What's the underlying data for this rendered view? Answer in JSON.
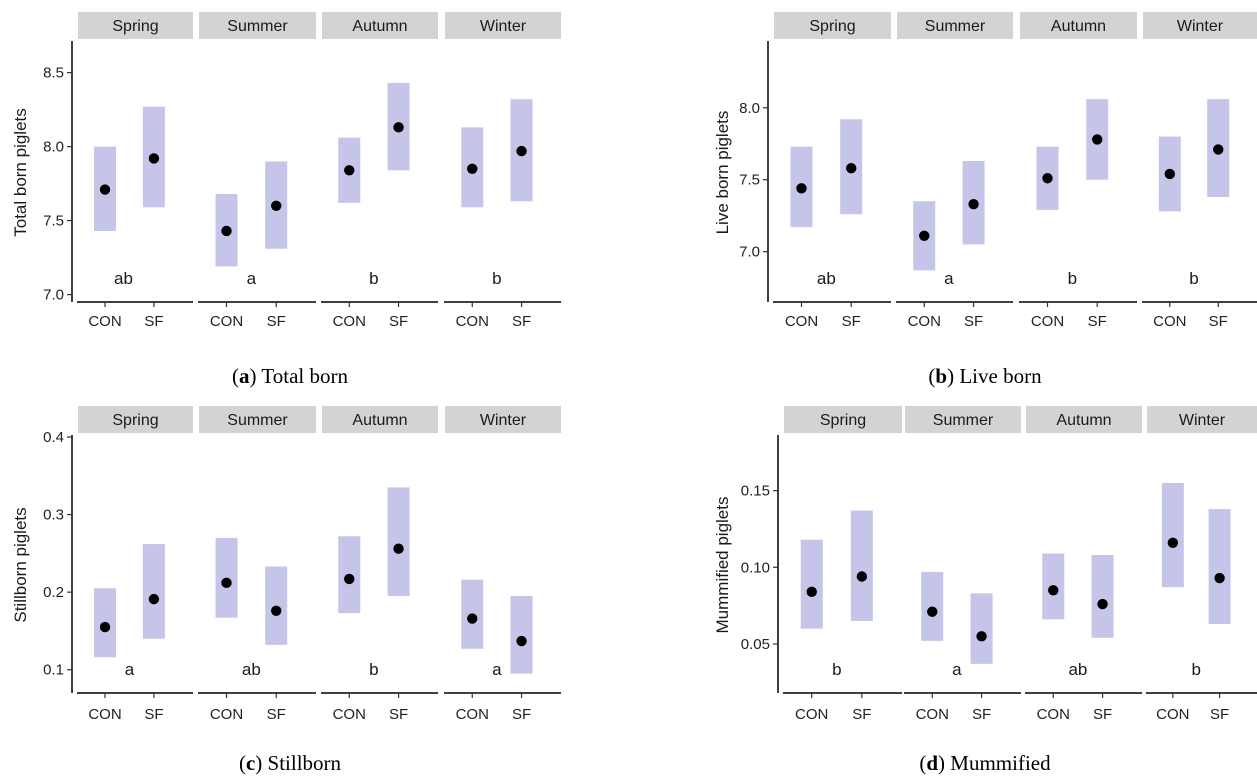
{
  "chart_data": [
    {
      "type": "scatter",
      "panel_label": "a",
      "caption": "Total born",
      "ylabel": "Total born piglets",
      "xlabel": "",
      "ylim": [
        6.95,
        8.7
      ],
      "y_ticks": [
        7.0,
        7.5,
        8.0,
        8.5
      ],
      "facets": [
        "Spring",
        "Summer",
        "Autumn",
        "Winter"
      ],
      "categories": [
        "CON",
        "SF"
      ],
      "series": [
        {
          "facet": "Spring",
          "group_letter": "ab",
          "points": [
            {
              "category": "CON",
              "mean": 7.71,
              "lower": 7.43,
              "upper": 8.0
            },
            {
              "category": "SF",
              "mean": 7.92,
              "lower": 7.59,
              "upper": 8.27
            }
          ]
        },
        {
          "facet": "Summer",
          "group_letter": "a",
          "points": [
            {
              "category": "CON",
              "mean": 7.43,
              "lower": 7.19,
              "upper": 7.68
            },
            {
              "category": "SF",
              "mean": 7.6,
              "lower": 7.31,
              "upper": 7.9
            }
          ]
        },
        {
          "facet": "Autumn",
          "group_letter": "b",
          "points": [
            {
              "category": "CON",
              "mean": 7.84,
              "lower": 7.62,
              "upper": 8.06
            },
            {
              "category": "SF",
              "mean": 8.13,
              "lower": 7.84,
              "upper": 8.43
            }
          ]
        },
        {
          "facet": "Winter",
          "group_letter": "b",
          "points": [
            {
              "category": "CON",
              "mean": 7.85,
              "lower": 7.59,
              "upper": 8.13
            },
            {
              "category": "SF",
              "mean": 7.97,
              "lower": 7.63,
              "upper": 8.32
            }
          ]
        }
      ]
    },
    {
      "type": "scatter",
      "panel_label": "b",
      "caption": "Live born",
      "ylabel": "Live born piglets",
      "xlabel": "",
      "ylim": [
        6.65,
        8.45
      ],
      "y_ticks": [
        7.0,
        7.5,
        8.0
      ],
      "facets": [
        "Spring",
        "Summer",
        "Autumn",
        "Winter"
      ],
      "categories": [
        "CON",
        "SF"
      ],
      "series": [
        {
          "facet": "Spring",
          "group_letter": "ab",
          "points": [
            {
              "category": "CON",
              "mean": 7.44,
              "lower": 7.17,
              "upper": 7.73
            },
            {
              "category": "SF",
              "mean": 7.58,
              "lower": 7.26,
              "upper": 7.92
            }
          ]
        },
        {
          "facet": "Summer",
          "group_letter": "a",
          "points": [
            {
              "category": "CON",
              "mean": 7.11,
              "lower": 6.87,
              "upper": 7.35
            },
            {
              "category": "SF",
              "mean": 7.33,
              "lower": 7.05,
              "upper": 7.63
            }
          ]
        },
        {
          "facet": "Autumn",
          "group_letter": "b",
          "points": [
            {
              "category": "CON",
              "mean": 7.51,
              "lower": 7.29,
              "upper": 7.73
            },
            {
              "category": "SF",
              "mean": 7.78,
              "lower": 7.5,
              "upper": 8.06
            }
          ]
        },
        {
          "facet": "Winter",
          "group_letter": "b",
          "points": [
            {
              "category": "CON",
              "mean": 7.54,
              "lower": 7.28,
              "upper": 7.8
            },
            {
              "category": "SF",
              "mean": 7.71,
              "lower": 7.38,
              "upper": 8.06
            }
          ]
        }
      ]
    },
    {
      "type": "scatter",
      "panel_label": "c",
      "caption": "Stillborn",
      "ylabel": "Stillborn piglets",
      "xlabel": "",
      "ylim": [
        0.07,
        0.4
      ],
      "y_ticks": [
        0.1,
        0.2,
        0.3,
        0.4
      ],
      "facets": [
        "Spring",
        "Summer",
        "Autumn",
        "Winter"
      ],
      "categories": [
        "CON",
        "SF"
      ],
      "series": [
        {
          "facet": "Spring",
          "group_letter": "a",
          "points": [
            {
              "category": "CON",
              "mean": 0.155,
              "lower": 0.116,
              "upper": 0.205
            },
            {
              "category": "SF",
              "mean": 0.191,
              "lower": 0.14,
              "upper": 0.262
            }
          ]
        },
        {
          "facet": "Summer",
          "group_letter": "ab",
          "points": [
            {
              "category": "CON",
              "mean": 0.212,
              "lower": 0.167,
              "upper": 0.27
            },
            {
              "category": "SF",
              "mean": 0.176,
              "lower": 0.132,
              "upper": 0.233
            }
          ]
        },
        {
          "facet": "Autumn",
          "group_letter": "b",
          "points": [
            {
              "category": "CON",
              "mean": 0.217,
              "lower": 0.173,
              "upper": 0.272
            },
            {
              "category": "SF",
              "mean": 0.256,
              "lower": 0.195,
              "upper": 0.335
            }
          ]
        },
        {
          "facet": "Winter",
          "group_letter": "a",
          "points": [
            {
              "category": "CON",
              "mean": 0.166,
              "lower": 0.127,
              "upper": 0.216
            },
            {
              "category": "SF",
              "mean": 0.137,
              "lower": 0.095,
              "upper": 0.195
            }
          ]
        }
      ]
    },
    {
      "type": "scatter",
      "panel_label": "d",
      "caption": "Mummified",
      "ylabel": "Mummified piglets",
      "xlabel": "",
      "ylim": [
        0.018,
        0.185
      ],
      "y_ticks": [
        0.05,
        0.1,
        0.15
      ],
      "y_tick_labels": [
        "0.05",
        "0.10",
        "0.15"
      ],
      "facets": [
        "Spring",
        "Summer",
        "Autumn",
        "Winter"
      ],
      "categories": [
        "CON",
        "SF"
      ],
      "series": [
        {
          "facet": "Spring",
          "group_letter": "b",
          "points": [
            {
              "category": "CON",
              "mean": 0.084,
              "lower": 0.06,
              "upper": 0.118
            },
            {
              "category": "SF",
              "mean": 0.094,
              "lower": 0.065,
              "upper": 0.137
            }
          ]
        },
        {
          "facet": "Summer",
          "group_letter": "a",
          "points": [
            {
              "category": "CON",
              "mean": 0.071,
              "lower": 0.052,
              "upper": 0.097
            },
            {
              "category": "SF",
              "mean": 0.055,
              "lower": 0.037,
              "upper": 0.083
            }
          ]
        },
        {
          "facet": "Autumn",
          "group_letter": "ab",
          "points": [
            {
              "category": "CON",
              "mean": 0.085,
              "lower": 0.066,
              "upper": 0.109
            },
            {
              "category": "SF",
              "mean": 0.076,
              "lower": 0.054,
              "upper": 0.108
            }
          ]
        },
        {
          "facet": "Winter",
          "group_letter": "b",
          "points": [
            {
              "category": "CON",
              "mean": 0.116,
              "lower": 0.087,
              "upper": 0.155
            },
            {
              "category": "SF",
              "mean": 0.093,
              "lower": 0.063,
              "upper": 0.138
            }
          ]
        }
      ]
    }
  ]
}
